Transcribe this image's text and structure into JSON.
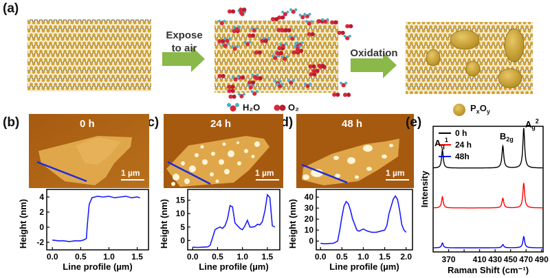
{
  "figure": {
    "panel_a": {
      "label": "(a)",
      "arrow1_line1": "Expose",
      "arrow1_line2": "to air",
      "arrow2": "Oxidation",
      "legend_h2o": "H₂O",
      "legend_o2": "O₂",
      "legend_pxoy": "PxOy"
    },
    "panels_afm": [
      {
        "label": "(b)",
        "time": "0 h",
        "scale": "1 µm"
      },
      {
        "label": "(c)",
        "time": "24 h",
        "scale": "1 µm"
      },
      {
        "label": "(d)",
        "time": "48 h",
        "scale": "1 µm"
      }
    ],
    "panel_e": {
      "label": "(e)"
    },
    "colors": {
      "phosphorus": "#d4a22c",
      "bond": "#6e6a60",
      "arrow": "#8ab849",
      "oxide": "#c9a233",
      "water_o": "#d8283c",
      "water_h": "#46b0c8",
      "profile_line": "#1a1aff",
      "raman_0h": "#000000",
      "raman_24h": "#ff0000",
      "raman_48h": "#0000ff"
    }
  },
  "chart_data": [
    {
      "type": "line",
      "panel": "b",
      "xlabel": "Line profile (µm)",
      "ylabel": "Height (nm)",
      "xlim": [
        -0.1,
        1.7
      ],
      "ylim": [
        -3,
        5
      ],
      "xticks": [
        0.0,
        0.5,
        1.0,
        1.5
      ],
      "yticks": [
        -2,
        0,
        2,
        4
      ],
      "xtick_labels": [
        "0.0",
        "0.5",
        "1.0",
        "1.5"
      ],
      "series": [
        {
          "x": [
            0.0,
            0.1,
            0.2,
            0.3,
            0.4,
            0.5,
            0.55,
            0.6,
            0.62,
            0.65,
            0.7,
            0.8,
            0.9,
            1.0,
            1.1,
            1.2,
            1.3,
            1.4,
            1.5,
            1.55
          ],
          "y": [
            -1.7,
            -1.8,
            -1.8,
            -1.9,
            -1.8,
            -1.8,
            -1.7,
            -1.5,
            0.5,
            3.0,
            3.9,
            4.1,
            4.0,
            4.1,
            3.9,
            4.0,
            4.1,
            3.9,
            4.0,
            3.9
          ]
        }
      ]
    },
    {
      "type": "line",
      "panel": "c",
      "xlabel": "Line profile (µm)",
      "ylabel": "Height (nm)",
      "xlim": [
        -0.1,
        1.75
      ],
      "ylim": [
        -3.5,
        19
      ],
      "xticks": [
        0.0,
        0.5,
        1.0,
        1.5
      ],
      "yticks": [
        0,
        5,
        10,
        15
      ],
      "xtick_labels": [
        "0.0",
        "0.5",
        "1.0",
        "1.5"
      ],
      "series": [
        {
          "x": [
            0.0,
            0.1,
            0.2,
            0.3,
            0.35,
            0.4,
            0.45,
            0.5,
            0.55,
            0.6,
            0.65,
            0.7,
            0.75,
            0.8,
            0.85,
            0.9,
            0.95,
            1.0,
            1.05,
            1.1,
            1.15,
            1.2,
            1.25,
            1.3,
            1.35,
            1.4,
            1.45,
            1.5,
            1.55,
            1.6,
            1.65
          ],
          "y": [
            -2.5,
            -2.6,
            -2.5,
            -2.4,
            -1.8,
            1.0,
            4.0,
            4.6,
            5.0,
            4.5,
            5.5,
            8.0,
            13.0,
            12.5,
            6.5,
            5.5,
            4.5,
            4.0,
            5.5,
            7.5,
            5.0,
            5.0,
            5.2,
            6.0,
            5.8,
            7.0,
            11.0,
            17.0,
            16.0,
            5.5,
            5.0
          ]
        }
      ]
    },
    {
      "type": "line",
      "panel": "d",
      "xlabel": "Line profile (µm)",
      "ylabel": "Height (nm)",
      "xlim": [
        -0.1,
        2.15
      ],
      "ylim": [
        -8,
        47
      ],
      "xticks": [
        0.0,
        0.5,
        1.0,
        1.5,
        2.0
      ],
      "yticks": [
        0,
        10,
        20,
        30,
        40
      ],
      "xtick_labels": [
        "0.0",
        "0.5",
        "1.0",
        "1.5",
        "2.0"
      ],
      "series": [
        {
          "x": [
            0.0,
            0.1,
            0.2,
            0.3,
            0.4,
            0.45,
            0.5,
            0.55,
            0.6,
            0.65,
            0.7,
            0.75,
            0.8,
            0.85,
            0.9,
            0.95,
            1.0,
            1.1,
            1.2,
            1.3,
            1.4,
            1.5,
            1.55,
            1.6,
            1.7,
            1.75,
            1.8,
            1.85,
            1.9,
            1.95,
            2.0
          ],
          "y": [
            -2,
            -2.5,
            -2.2,
            -2.0,
            0,
            10,
            22,
            32,
            36,
            34,
            28,
            20,
            15,
            10,
            9,
            10,
            11,
            9,
            8,
            8,
            9,
            10,
            14,
            25,
            38,
            41,
            38,
            28,
            15,
            10,
            8
          ]
        }
      ]
    },
    {
      "type": "line",
      "panel": "e",
      "xlabel": "Raman Shift (cm⁻¹)",
      "ylabel": "Intensity",
      "xlim": [
        350,
        492
      ],
      "xticks": [
        370,
        390,
        410,
        430,
        450,
        470,
        490
      ],
      "xtick_labels": [
        "370",
        "",
        "410",
        "430",
        "450",
        "470",
        "490"
      ],
      "peaks": {
        "Ag1": 362,
        "B2g": 440,
        "Ag2": 467
      },
      "peak_labels": {
        "Ag1": "A",
        "Ag1_sub": "g",
        "Ag1_sup": "1",
        "B2g": "B",
        "B2g_sub": "2g",
        "Ag2": "A",
        "Ag2_sub": "g",
        "Ag2_sup": "2"
      },
      "series": [
        {
          "name": "0 h",
          "offset": 2.0,
          "heights": {
            "Ag1": 0.45,
            "B2g": 0.55,
            "Ag2": 1.0
          }
        },
        {
          "name": "24 h",
          "offset": 1.0,
          "heights": {
            "Ag1": 0.28,
            "B2g": 0.24,
            "Ag2": 0.62
          }
        },
        {
          "name": "48h",
          "offset": 0.0,
          "heights": {
            "Ag1": 0.12,
            "B2g": 0.08,
            "Ag2": 0.28
          }
        }
      ]
    }
  ]
}
